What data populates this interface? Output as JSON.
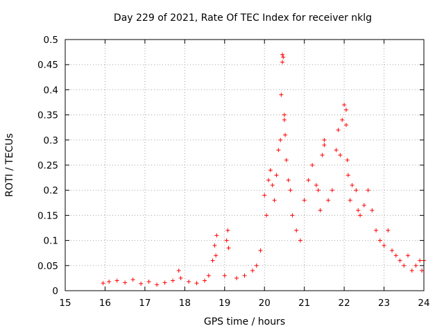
{
  "chart_data": {
    "type": "scatter",
    "title": "Day 229 of 2021, Rate Of TEC Index for receiver nklg",
    "xlabel": "GPS time / hours",
    "ylabel": "ROTI / TECUs",
    "xlim": [
      15,
      24
    ],
    "ylim": [
      0,
      0.5
    ],
    "xticks": [
      "15",
      "16",
      "17",
      "18",
      "19",
      "20",
      "21",
      "22",
      "23",
      "24"
    ],
    "yticks": [
      "0",
      "0.05",
      "0.1",
      "0.15",
      "0.2",
      "0.25",
      "0.3",
      "0.35",
      "0.4",
      "0.45",
      "0.5"
    ],
    "grid": true,
    "marker": "+",
    "color": "#ff0000",
    "series": [
      {
        "name": "ROTI",
        "x": [
          15.95,
          16.1,
          16.3,
          16.5,
          16.7,
          16.9,
          17.1,
          17.3,
          17.5,
          17.7,
          17.85,
          17.9,
          18.1,
          18.3,
          18.5,
          18.7,
          18.6,
          18.75,
          18.8,
          18.78,
          19.0,
          19.05,
          19.08,
          19.1,
          19.3,
          19.5,
          19.7,
          19.8,
          19.9,
          20.0,
          20.05,
          20.1,
          20.15,
          20.2,
          20.25,
          20.3,
          20.35,
          20.4,
          20.42,
          20.45,
          20.45,
          20.47,
          20.5,
          20.5,
          20.52,
          20.55,
          20.6,
          20.65,
          20.7,
          20.8,
          20.9,
          21.0,
          21.1,
          21.2,
          21.3,
          21.35,
          21.4,
          21.45,
          21.5,
          21.5,
          21.6,
          21.7,
          21.8,
          21.85,
          21.9,
          21.95,
          22.0,
          22.05,
          22.05,
          22.08,
          22.1,
          22.15,
          22.2,
          22.3,
          22.35,
          22.4,
          22.5,
          22.6,
          22.7,
          22.8,
          22.9,
          23.0,
          23.1,
          23.2,
          23.3,
          23.4,
          23.5,
          23.6,
          23.7,
          23.8,
          23.9,
          23.95,
          24.0
        ],
        "y": [
          0.015,
          0.018,
          0.02,
          0.016,
          0.022,
          0.014,
          0.018,
          0.012,
          0.016,
          0.02,
          0.04,
          0.025,
          0.018,
          0.015,
          0.02,
          0.06,
          0.03,
          0.09,
          0.11,
          0.07,
          0.03,
          0.1,
          0.12,
          0.085,
          0.025,
          0.03,
          0.04,
          0.05,
          0.08,
          0.19,
          0.15,
          0.22,
          0.24,
          0.21,
          0.18,
          0.23,
          0.28,
          0.3,
          0.39,
          0.455,
          0.47,
          0.465,
          0.35,
          0.34,
          0.31,
          0.26,
          0.22,
          0.2,
          0.15,
          0.12,
          0.1,
          0.18,
          0.22,
          0.25,
          0.21,
          0.2,
          0.16,
          0.27,
          0.3,
          0.29,
          0.18,
          0.2,
          0.28,
          0.32,
          0.27,
          0.34,
          0.37,
          0.36,
          0.33,
          0.26,
          0.23,
          0.18,
          0.21,
          0.2,
          0.16,
          0.15,
          0.17,
          0.2,
          0.16,
          0.12,
          0.1,
          0.09,
          0.12,
          0.08,
          0.07,
          0.06,
          0.05,
          0.07,
          0.04,
          0.05,
          0.06,
          0.04,
          0.06
        ]
      }
    ]
  }
}
